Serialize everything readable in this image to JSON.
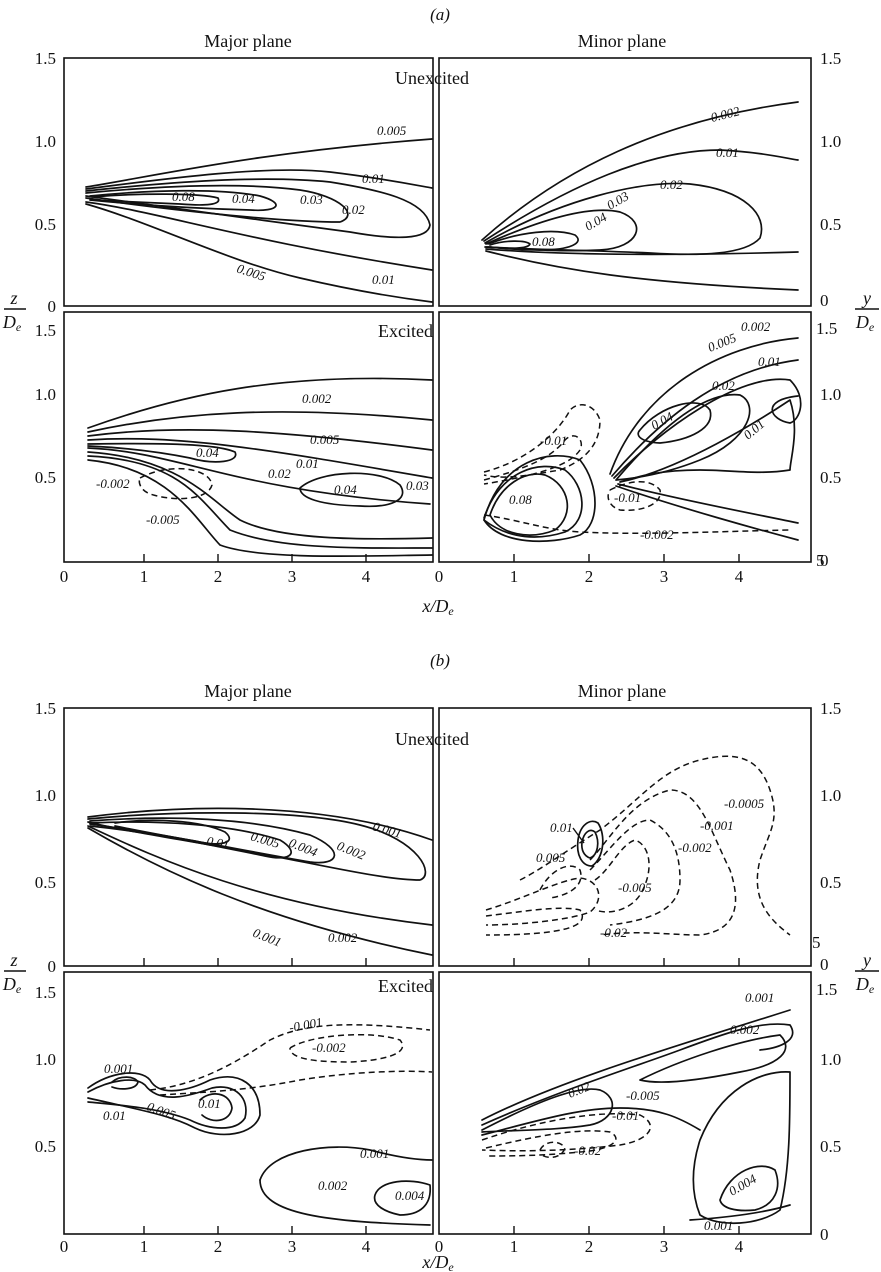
{
  "chart_data": {
    "type": "contour",
    "x_axis_label": "x/D",
    "x_axis_label_sub": "e",
    "left_axis_label": "z",
    "right_axis_label": "y",
    "axis_denominator": "D",
    "axis_denominator_sub": "e",
    "xlim": [
      0,
      5
    ],
    "ylim": [
      0,
      1.5
    ],
    "x_ticks": [
      "0",
      "1",
      "2",
      "3",
      "4",
      "5"
    ],
    "y_ticks": [
      "0",
      "0.5",
      "1.0",
      "1.5"
    ],
    "grid": false,
    "solid_lines": "positive contour levels",
    "dashed_lines": "negative contour levels",
    "sections": [
      {
        "label": "(a)",
        "panels": [
          {
            "plane": "Major plane",
            "condition": "Unexcited",
            "contour_labels": [
              "0.005",
              "0.01",
              "0.02",
              "0.03",
              "0.04",
              "0.08",
              "0.01",
              "0.005"
            ]
          },
          {
            "plane": "Minor plane",
            "condition": "Unexcited",
            "contour_labels": [
              "0.002",
              "0.01",
              "0.02",
              "0.03",
              "0.04",
              "0.08"
            ]
          },
          {
            "plane": "Major plane",
            "condition": "Excited",
            "contour_labels": [
              "0.002",
              "0.005",
              "0.01",
              "0.02",
              "0.04",
              "0.04",
              "0.03",
              "-0.002",
              "-0.005"
            ]
          },
          {
            "plane": "Minor plane",
            "condition": "Excited",
            "contour_labels": [
              "0.002",
              "0.005",
              "0.01",
              "0.02",
              "0.04",
              "0.01",
              "-0.01",
              "0.08",
              "-0.01",
              "-0.002"
            ]
          }
        ]
      },
      {
        "label": "(b)",
        "panels": [
          {
            "plane": "Major plane",
            "condition": "Unexcited",
            "contour_labels": [
              "0.001",
              "0.002",
              "0.004",
              "0.005",
              "0.01",
              "0.001",
              "0.002"
            ]
          },
          {
            "plane": "Minor plane",
            "condition": "Unexcited",
            "contour_labels": [
              "-0.0005",
              "-0.001",
              "-0.002",
              "-0.005",
              "0.01",
              "0.005",
              "-0.02"
            ]
          },
          {
            "plane": "Major plane",
            "condition": "Excited",
            "contour_labels": [
              "0.001",
              "-0.001",
              "-0.002",
              "0.01",
              "0.01",
              "0.005",
              "0.001",
              "0.002",
              "0.004"
            ]
          },
          {
            "plane": "Minor plane",
            "condition": "Excited",
            "contour_labels": [
              "0.001",
              "0.002",
              "0.02",
              "-0.005",
              "-0.01",
              "-0.02",
              "0.004",
              "0.001"
            ]
          }
        ]
      }
    ]
  }
}
